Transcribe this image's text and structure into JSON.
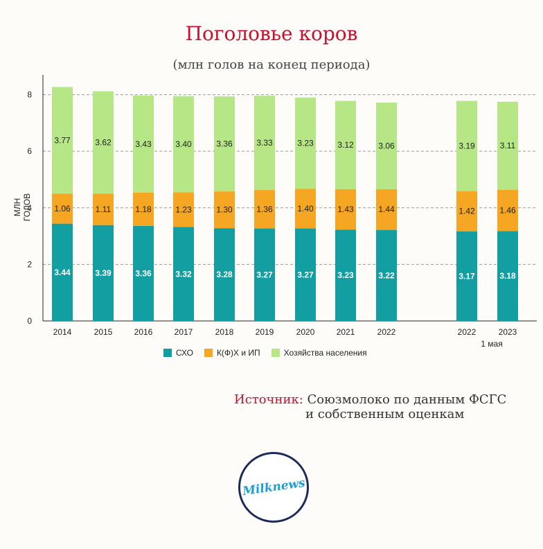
{
  "title": "Поголовье коров",
  "subtitle": "(млн голов на конец периода)",
  "source": {
    "label": "Источник:",
    "line1": " Союзмолоко по данным ФСГС",
    "line2": "и собственным оценкам"
  },
  "logo_text": "Milknews",
  "chart_data": {
    "type": "bar",
    "stacked": true,
    "title": "Поголовье коров",
    "subtitle": "(млн голов на конец периода)",
    "ylabel": "МЛН ГОЛОВ",
    "ylim": [
      0,
      8.7
    ],
    "yticks": [
      0,
      2,
      4,
      6,
      8
    ],
    "grid": true,
    "legend_position": "bottom",
    "categories": [
      "2014",
      "2015",
      "2016",
      "2017",
      "2018",
      "2019",
      "2020",
      "2021",
      "2022",
      "2022",
      "2023"
    ],
    "category_note": "1 мая",
    "series": [
      {
        "name": "СХО",
        "color": "#139ea1",
        "label_color": "#ffffff",
        "values": [
          3.44,
          3.39,
          3.36,
          3.32,
          3.28,
          3.27,
          3.27,
          3.23,
          3.22,
          3.17,
          3.18
        ]
      },
      {
        "name": "К(Ф)Х и ИП",
        "color": "#f5a623",
        "label_color": "#222222",
        "values": [
          1.06,
          1.11,
          1.18,
          1.23,
          1.3,
          1.36,
          1.4,
          1.43,
          1.44,
          1.42,
          1.46
        ]
      },
      {
        "name": "Хозяйства населения",
        "color": "#b6e685",
        "label_color": "#222222",
        "values": [
          3.77,
          3.62,
          3.43,
          3.4,
          3.36,
          3.33,
          3.23,
          3.12,
          3.06,
          3.19,
          3.11
        ]
      }
    ]
  }
}
